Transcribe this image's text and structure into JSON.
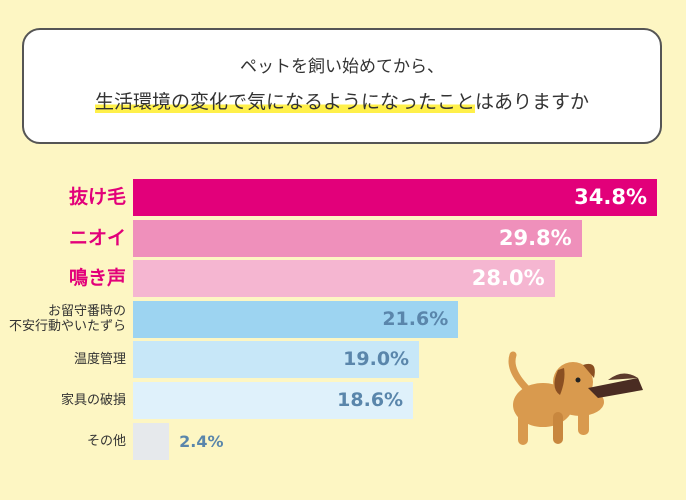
{
  "chart_data": {
    "type": "bar",
    "orientation": "horizontal",
    "title": [
      "ペットを飼い始めてから、",
      "生活環境の変化で気になるようになったこと",
      "はありますか"
    ],
    "categories": [
      "抜け毛",
      "ニオイ",
      "鳴き声",
      "お留守番時の\n不安行動やいたずら",
      "温度管理",
      "家具の破損",
      "その他"
    ],
    "values": [
      34.8,
      29.8,
      28.0,
      21.6,
      19.0,
      18.6,
      2.4
    ],
    "value_labels": [
      "34.8%",
      "29.8%",
      "28.0%",
      "21.6%",
      "19.0%",
      "18.6%",
      "2.4%"
    ],
    "colors": [
      "#e2007a",
      "#ef90bb",
      "#f5b6d1",
      "#9dd4f1",
      "#c7e7f8",
      "#dff1fb",
      "#e6e9ec"
    ],
    "xlim": [
      0,
      35
    ]
  }
}
